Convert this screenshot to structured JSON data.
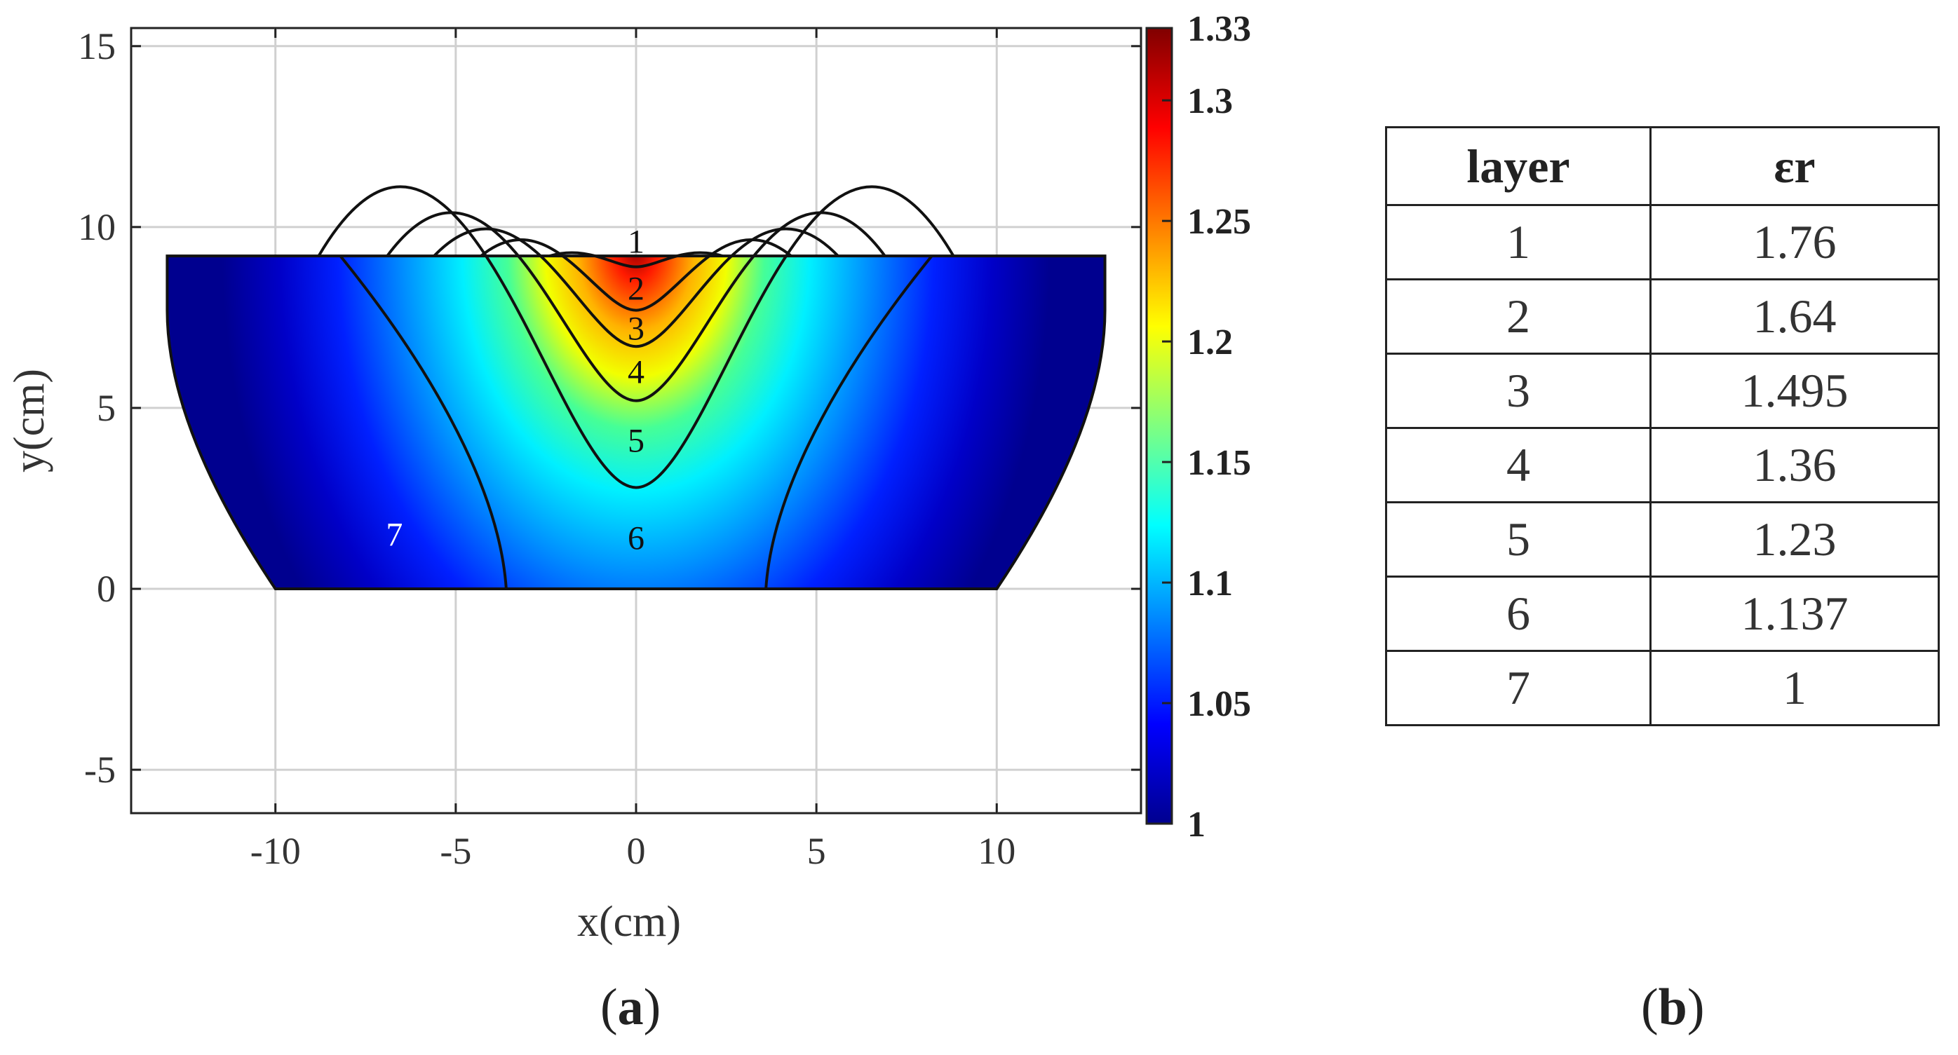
{
  "chart_data": [
    {
      "type": "heatmap",
      "panel": "(a)",
      "xlabel": "x(cm)",
      "ylabel": "y(cm)",
      "xlim": [
        -14,
        14
      ],
      "ylim": [
        -6.2,
        15.5
      ],
      "xticks": [
        -10,
        -5,
        0,
        5,
        10
      ],
      "yticks": [
        -5,
        0,
        5,
        10,
        15
      ],
      "grid": true,
      "colormap": "jet",
      "colorbar": {
        "min": 1,
        "max": 1.33,
        "ticks": [
          "1",
          "1.05",
          "1.1",
          "1.15",
          "1.2",
          "1.25",
          "1.3",
          "1.33"
        ]
      },
      "region": {
        "x_top": [
          -13,
          13
        ],
        "y_top": 9.2,
        "x_bottom": [
          -10,
          10
        ],
        "y_bottom": 0
      },
      "layer_labels": [
        {
          "text": "1",
          "x": 0,
          "y": 9.6
        },
        {
          "text": "2",
          "x": 0,
          "y": 8.3
        },
        {
          "text": "3",
          "x": 0,
          "y": 7.2
        },
        {
          "text": "4",
          "x": 0,
          "y": 6.0
        },
        {
          "text": "5",
          "x": 0,
          "y": 4.1
        },
        {
          "text": "6",
          "x": 0,
          "y": 1.4
        },
        {
          "text": "7",
          "x": -6.7,
          "y": 1.5
        }
      ],
      "layer_boundaries": [
        {
          "name": "1-2",
          "x_half_width": 2.4,
          "y_center": 8.9
        },
        {
          "name": "2-3",
          "x_half_width": 4.3,
          "y_center": 7.7
        },
        {
          "name": "3-4",
          "x_half_width": 5.6,
          "y_center": 6.7
        },
        {
          "name": "4-5",
          "x_half_width": 6.9,
          "y_center": 5.2
        },
        {
          "name": "5-6",
          "x_half_width": 8.8,
          "y_center": 2.8
        },
        {
          "name": "6-7",
          "x_half_width": 9.3,
          "y_center": 0
        }
      ]
    },
    {
      "type": "table",
      "panel": "(b)",
      "columns": [
        "layer",
        "εr"
      ],
      "rows": [
        [
          "1",
          "1.76"
        ],
        [
          "2",
          "1.64"
        ],
        [
          "3",
          "1.495"
        ],
        [
          "4",
          "1.36"
        ],
        [
          "5",
          "1.23"
        ],
        [
          "6",
          "1.137"
        ],
        [
          "7",
          "1"
        ]
      ]
    }
  ],
  "labels": {
    "a": "a",
    "b": "b"
  }
}
